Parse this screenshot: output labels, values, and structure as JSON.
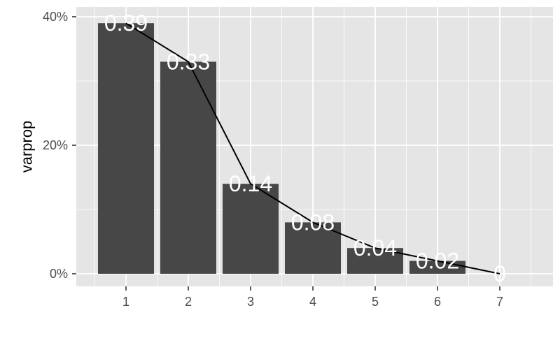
{
  "chart_data": {
    "type": "bar",
    "categories": [
      "1",
      "2",
      "3",
      "4",
      "5",
      "6",
      "7"
    ],
    "values": [
      0.39,
      0.33,
      0.14,
      0.08,
      0.04,
      0.02,
      0
    ],
    "data_labels": [
      "0.39",
      "0.33",
      "0.14",
      "0.08",
      "0.04",
      "0.02",
      "0"
    ],
    "overlay_line": true,
    "ylabel": "varprop",
    "xlabel": "",
    "ylim": [
      0,
      0.4
    ],
    "yticks": [
      0,
      0.2,
      0.4
    ],
    "ytick_labels": [
      "0%",
      "20%",
      "40%"
    ],
    "grid": true,
    "colors": {
      "panel": "#e5e5e5",
      "grid": "#ffffff",
      "bar": "#474747",
      "line": "#000000",
      "label": "#ffffff"
    }
  }
}
